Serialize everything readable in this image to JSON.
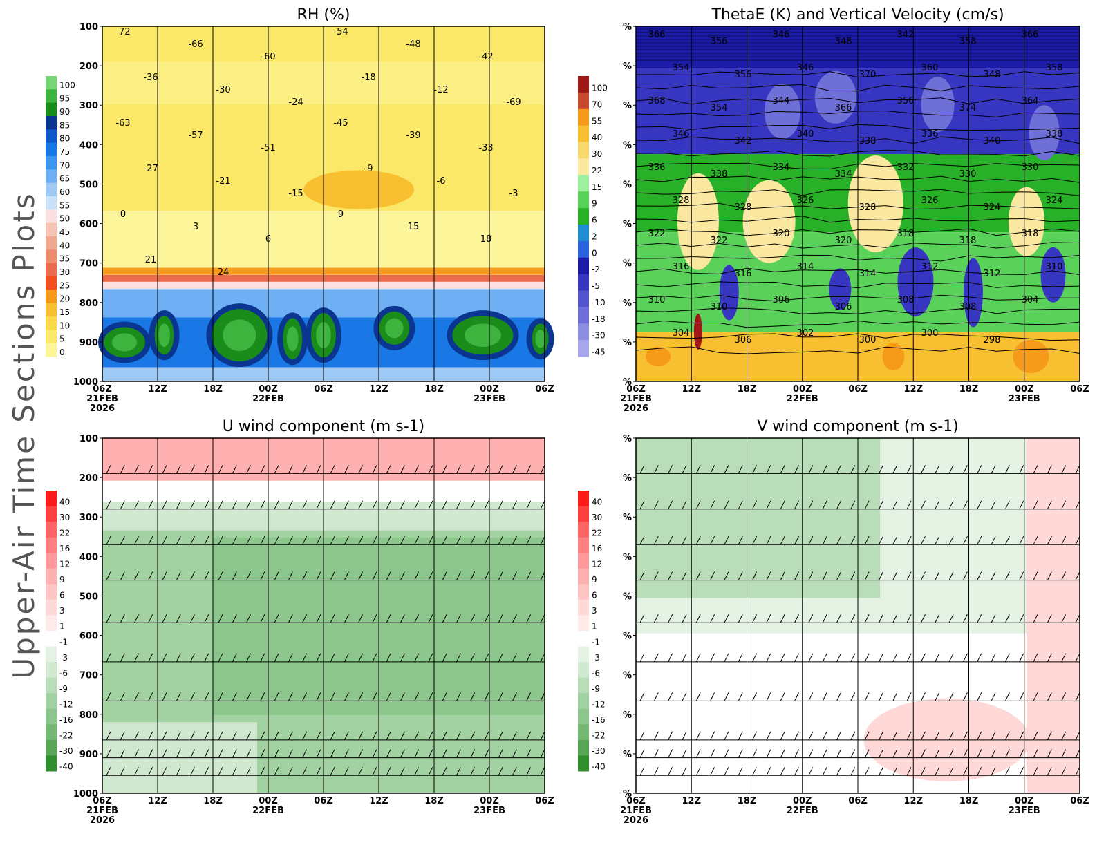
{
  "page_title": "Upper-Air Time Sections Plots",
  "chart_data": [
    {
      "type": "heatmap",
      "title": "RH (%)",
      "y_axis": {
        "ticks": [
          "100",
          "200",
          "300",
          "400",
          "500",
          "600",
          "700",
          "800",
          "900",
          "1000"
        ]
      },
      "x_axis": {
        "ticks": [
          "06Z",
          "12Z",
          "18Z",
          "00Z",
          "06Z",
          "12Z",
          "18Z",
          "00Z",
          "06Z"
        ],
        "date_labels": [
          "21FEB",
          "22FEB",
          "23FEB"
        ],
        "year_label": "2026"
      },
      "colorbar": {
        "labels": [
          "100",
          "95",
          "90",
          "85",
          "80",
          "75",
          "70",
          "65",
          "60",
          "55",
          "50",
          "45",
          "40",
          "35",
          "30",
          "25",
          "20",
          "15",
          "10",
          "5",
          "0"
        ],
        "colors": [
          "#74d674",
          "#3db43d",
          "#1a8c1a",
          "#0a3590",
          "#0e58c8",
          "#1a78e6",
          "#3c96f0",
          "#6fb0f4",
          "#a0caf6",
          "#c8e0f8",
          "#fce0e0",
          "#f7c4b4",
          "#f2a890",
          "#ee8c70",
          "#ea6c4c",
          "#f05020",
          "#f59a1a",
          "#f8c030",
          "#fad848",
          "#fbe868",
          "#fdf59a"
        ]
      },
      "contour_labels": [
        "-72",
        "-66",
        "-60",
        "-54",
        "-48",
        "-42",
        "-36",
        "-30",
        "-24",
        "-18",
        "-12",
        "-69",
        "-63",
        "-57",
        "-51",
        "-45",
        "-39",
        "-33",
        "-27",
        "-21",
        "-15",
        "-9",
        "-6",
        "-3",
        "0",
        "3",
        "6",
        "9",
        "15",
        "18",
        "21",
        "24"
      ]
    },
    {
      "type": "heatmap",
      "title": "ThetaE (K) and Vertical Velocity (cm/s)",
      "y_axis": {
        "ticks": [
          "%",
          "%",
          "%",
          "%",
          "%",
          "%",
          "%",
          "%",
          "%",
          "%"
        ]
      },
      "x_axis": {
        "ticks": [
          "06Z",
          "12Z",
          "18Z",
          "00Z",
          "06Z",
          "12Z",
          "18Z",
          "00Z",
          "06Z"
        ],
        "date_labels": [
          "21FEB",
          "22FEB",
          "23FEB"
        ],
        "year_label": "2026"
      },
      "colorbar": {
        "labels": [
          "100",
          "70",
          "55",
          "40",
          "30",
          "22",
          "15",
          "9",
          "6",
          "2",
          "0",
          "-2",
          "-5",
          "-10",
          "-18",
          "-30",
          "-45"
        ],
        "colors": [
          "#a01818",
          "#c84830",
          "#f59a1a",
          "#f8c030",
          "#fad870",
          "#fbe8a0",
          "#9ef09e",
          "#5ad25a",
          "#28b028",
          "#1f8ed0",
          "#2a62e0",
          "#1c1ca8",
          "#3636c0",
          "#5454cc",
          "#6f6fd8",
          "#8c8ce0",
          "#a6a6ea"
        ]
      },
      "contour_labels": [
        "366",
        "356",
        "346",
        "348",
        "342",
        "358",
        "366",
        "354",
        "356",
        "346",
        "370",
        "360",
        "348",
        "358",
        "368",
        "354",
        "344",
        "366",
        "356",
        "374",
        "364",
        "346",
        "342",
        "340",
        "338",
        "336",
        "340",
        "338",
        "336",
        "338",
        "334",
        "334",
        "332",
        "330",
        "330",
        "328",
        "328",
        "326",
        "328",
        "326",
        "324",
        "324",
        "322",
        "322",
        "320",
        "320",
        "318",
        "318",
        "318",
        "316",
        "316",
        "314",
        "314",
        "312",
        "312",
        "310",
        "310",
        "310",
        "306",
        "306",
        "308",
        "308",
        "304",
        "304",
        "306",
        "302",
        "300",
        "300",
        "298"
      ]
    },
    {
      "type": "heatmap",
      "title": "U wind component (m s-1)",
      "y_axis": {
        "ticks": [
          "100",
          "200",
          "300",
          "400",
          "500",
          "600",
          "700",
          "800",
          "900",
          "1000"
        ]
      },
      "x_axis": {
        "ticks": [
          "06Z",
          "12Z",
          "18Z",
          "00Z",
          "06Z",
          "12Z",
          "18Z",
          "00Z",
          "06Z"
        ],
        "date_labels": [
          "21FEB",
          "22FEB",
          "23FEB"
        ],
        "year_label": "2026"
      },
      "colorbar": {
        "labels": [
          "40",
          "30",
          "22",
          "16",
          "12",
          "9",
          "6",
          "3",
          "1",
          "-1",
          "-3",
          "-6",
          "-9",
          "-12",
          "-16",
          "-22",
          "-30",
          "-40"
        ],
        "colors": [
          "#ff1a1a",
          "#ff4040",
          "#ff6464",
          "#ff8080",
          "#ff9a9a",
          "#ffb0b0",
          "#ffc4c4",
          "#ffd8d8",
          "#ffeaea",
          "#ffffff",
          "#e4f2e4",
          "#cfe8cf",
          "#b8ddb8",
          "#a2d2a2",
          "#8cc68c",
          "#74b874",
          "#56a656",
          "#2f8f2f"
        ]
      }
    },
    {
      "type": "heatmap",
      "title": "V wind component (m s-1)",
      "y_axis": {
        "ticks": [
          "%",
          "%",
          "%",
          "%",
          "%",
          "%",
          "%",
          "%",
          "%",
          "%"
        ]
      },
      "x_axis": {
        "ticks": [
          "06Z",
          "12Z",
          "18Z",
          "00Z",
          "06Z",
          "12Z",
          "18Z",
          "00Z",
          "06Z"
        ],
        "date_labels": [
          "21FEB",
          "22FEB",
          "23FEB"
        ],
        "year_label": "2026"
      },
      "colorbar": {
        "labels": [
          "40",
          "30",
          "22",
          "16",
          "12",
          "9",
          "6",
          "3",
          "1",
          "-1",
          "-3",
          "-6",
          "-9",
          "-12",
          "-16",
          "-22",
          "-30",
          "-40"
        ],
        "colors": [
          "#ff1a1a",
          "#ff4040",
          "#ff6464",
          "#ff8080",
          "#ff9a9a",
          "#ffb0b0",
          "#ffc4c4",
          "#ffd8d8",
          "#ffeaea",
          "#ffffff",
          "#e4f2e4",
          "#cfe8cf",
          "#b8ddb8",
          "#a2d2a2",
          "#8cc68c",
          "#74b874",
          "#56a656",
          "#2f8f2f"
        ]
      }
    }
  ]
}
